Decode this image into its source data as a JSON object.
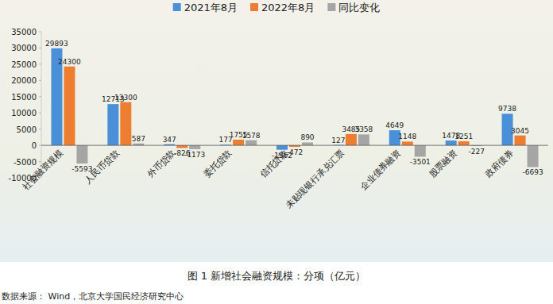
{
  "chart_data": {
    "type": "bar",
    "title": "图 1  新增社会融资规模：分项（亿元）",
    "source": "数据来源： Wind，北京大学国民经济研究中心",
    "categories": [
      "社会融资规模",
      "人民币贷款",
      "外币贷款",
      "委托贷款",
      "信托贷款",
      "未贴现银行承兑汇票",
      "企业债券融资",
      "股票融资",
      "政府债券"
    ],
    "series": [
      {
        "name": "2021年8月",
        "color": "#4a90d9",
        "values": [
          29893,
          12713,
          347,
          177,
          -1362,
          127,
          4649,
          1478,
          9738
        ]
      },
      {
        "name": "2022年8月",
        "color": "#ed7d31",
        "values": [
          24300,
          13300,
          -826,
          1755,
          -472,
          3485,
          1148,
          1251,
          3045
        ]
      },
      {
        "name": "同比变化",
        "color": "#a5a5a5",
        "values": [
          -5593,
          587,
          -1173,
          1578,
          890,
          3358,
          -3501,
          -227,
          -6693
        ]
      }
    ],
    "ylim": [
      -10000,
      35000
    ],
    "yticks": [
      -10000,
      -5000,
      0,
      5000,
      10000,
      15000,
      20000,
      25000,
      30000,
      35000
    ],
    "grid": false,
    "data_labels": true,
    "legend": "top"
  }
}
